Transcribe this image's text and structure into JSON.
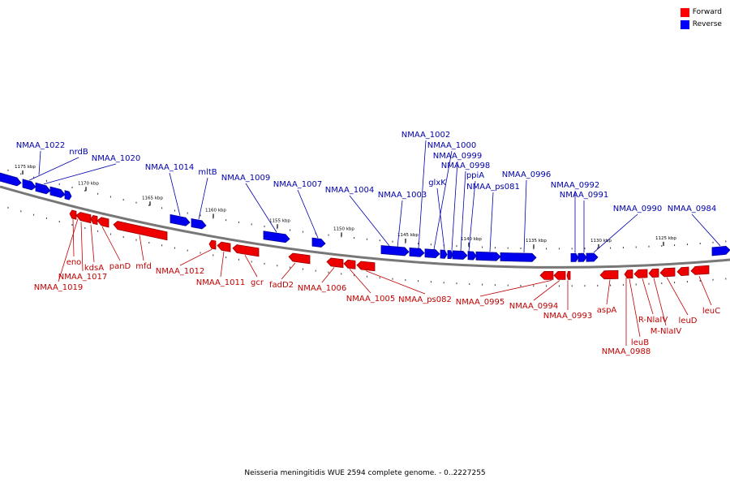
{
  "legend": {
    "forward": {
      "label": "Forward",
      "color": "#ff0000"
    },
    "reverse": {
      "label": "Reverse",
      "color": "#0000ff"
    }
  },
  "caption": "Neisseria meningitidis WUE 2594 complete genome. - 0..2227255",
  "colors": {
    "backbone": "#777777",
    "forward_label": "#c00000",
    "reverse_label": "#0000aa"
  },
  "ticks": [
    "1175 kbp",
    "1170 kbp",
    "1165 kbp",
    "1160 kbp",
    "1155 kbp",
    "1150 kbp",
    "1145 kbp",
    "1140 kbp",
    "1135 kbp",
    "1130 kbp",
    "1125 kbp"
  ],
  "reverse_genes": [
    "NMAA_1022",
    "nrdB",
    "NMAA_1020",
    "NMAA_1014",
    "mltB",
    "NMAA_1009",
    "NMAA_1007",
    "NMAA_1004",
    "NMAA_1003",
    "NMAA_1002",
    "NMAA_1000",
    "glxK",
    "NMAA_0999",
    "NMAA_0998",
    "ppiA",
    "NMAA_ps081",
    "NMAA_0996",
    "NMAA_0992",
    "NMAA_0991",
    "NMAA_0990",
    "NMAA_0984"
  ],
  "forward_genes": [
    "eno",
    "NMAA_1019",
    "NMAA_1017",
    "kdsA",
    "panD",
    "mfd",
    "NMAA_1012",
    "NMAA_1011",
    "gcr",
    "fadD2",
    "NMAA_1006",
    "NMAA_1005",
    "NMAA_ps082",
    "NMAA_0995",
    "NMAA_0994",
    "NMAA_0993",
    "aspA",
    "NMAA_0988",
    "leuB",
    "R-NlaIV",
    "M-NlaIV",
    "leuD",
    "leuC"
  ]
}
